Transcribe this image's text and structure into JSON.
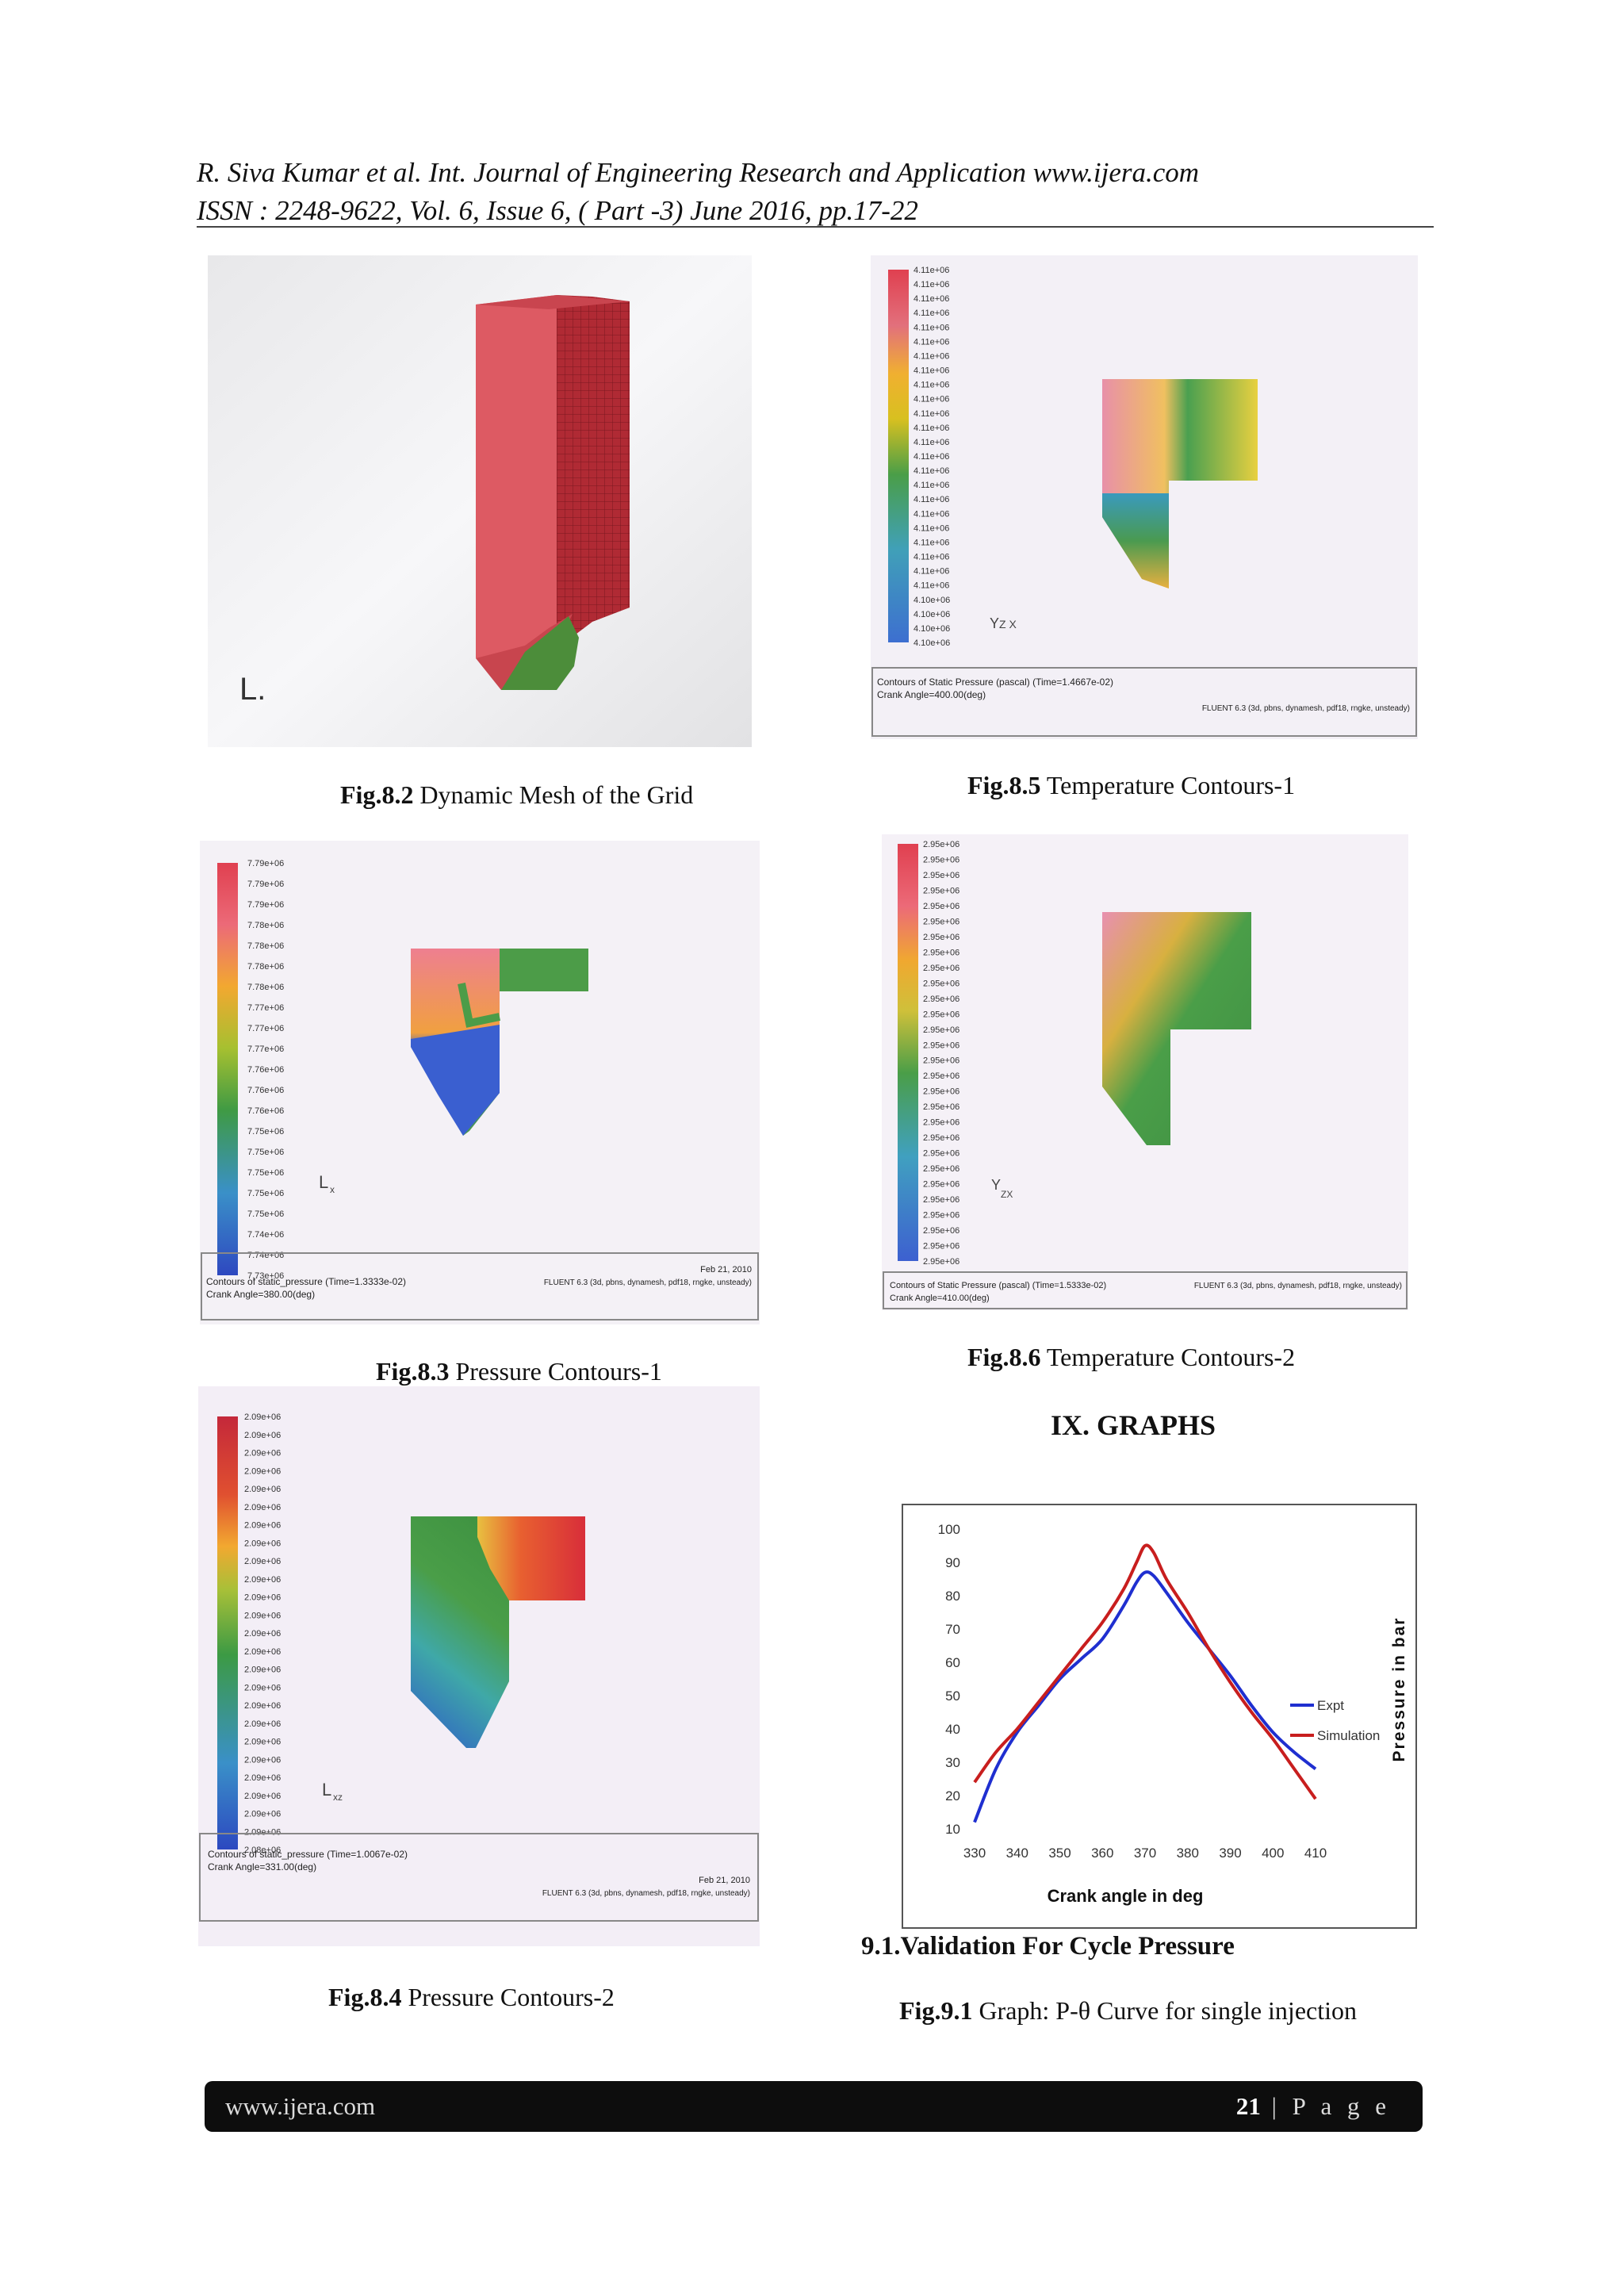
{
  "header": {
    "line1": "R. Siva Kumar et al.  Int. Journal of Engineering Research and Application www.ijera.com",
    "line2": "ISSN : 2248-9622, Vol. 6, Issue 6, ( Part -3) June 2016, pp.17-22"
  },
  "figures": {
    "fig82": {
      "num": "Fig.8.2",
      "text": " Dynamic Mesh of the Grid"
    },
    "fig85": {
      "num": "Fig.8.5",
      "text": " Temperature Contours-1"
    },
    "fig83": {
      "num": "Fig.8.3",
      "text": " Pressure Contours-1"
    },
    "fig86": {
      "num": "Fig.8.6",
      "text": " Temperature Contours-2"
    },
    "fig84": {
      "num": "Fig.8.4",
      "text": " Pressure Contours-2"
    },
    "fig91": {
      "num": "Fig.9.1",
      "text": " Graph: P-θ Curve for single injection"
    }
  },
  "contours": {
    "c83": {
      "legend": [
        "7.79e+06",
        "7.79e+06",
        "7.79e+06",
        "7.78e+06",
        "7.78e+06",
        "7.78e+06",
        "7.78e+06",
        "7.77e+06",
        "7.77e+06",
        "7.77e+06",
        "7.76e+06",
        "7.76e+06",
        "7.76e+06",
        "7.75e+06",
        "7.75e+06",
        "7.75e+06",
        "7.75e+06",
        "7.75e+06",
        "7.74e+06",
        "7.74e+06",
        "7.73e+06"
      ],
      "info_left1": "Contours of static_pressure  (Time=1.3333e-02)",
      "info_left2": "Crank Angle=380.00(deg)",
      "info_right1": "Feb 21, 2010",
      "info_right2": "FLUENT 6.3 (3d, pbns, dynamesh, pdf18, rngke, unsteady)"
    },
    "c84": {
      "legend": [
        "2.09e+06",
        "2.09e+06",
        "2.09e+06",
        "2.09e+06",
        "2.09e+06",
        "2.09e+06",
        "2.09e+06",
        "2.09e+06",
        "2.09e+06",
        "2.09e+06",
        "2.09e+06",
        "2.09e+06",
        "2.09e+06",
        "2.09e+06",
        "2.09e+06",
        "2.09e+06",
        "2.09e+06",
        "2.09e+06",
        "2.09e+06",
        "2.09e+06",
        "2.09e+06",
        "2.09e+06",
        "2.09e+06",
        "2.09e+06",
        "2.08e+06"
      ],
      "info_left1": "Contours of static_pressure  (Time=1.0067e-02)",
      "info_left2": "Crank Angle=331.00(deg)",
      "info_right1": "Feb 21, 2010",
      "info_right2": "FLUENT 6.3 (3d, pbns, dynamesh, pdf18, rngke, unsteady)"
    },
    "c85": {
      "legend": [
        "4.11e+06",
        "4.11e+06",
        "4.11e+06",
        "4.11e+06",
        "4.11e+06",
        "4.11e+06",
        "4.11e+06",
        "4.11e+06",
        "4.11e+06",
        "4.11e+06",
        "4.11e+06",
        "4.11e+06",
        "4.11e+06",
        "4.11e+06",
        "4.11e+06",
        "4.11e+06",
        "4.11e+06",
        "4.11e+06",
        "4.11e+06",
        "4.11e+06",
        "4.11e+06",
        "4.11e+06",
        "4.11e+06",
        "4.10e+06",
        "4.10e+06",
        "4.10e+06",
        "4.10e+06"
      ],
      "info_left1": "Contours of Static Pressure (pascal)  (Time=1.4667e-02)",
      "info_left2": "Crank Angle=400.00(deg)",
      "info_right2": "FLUENT 6.3 (3d, pbns, dynamesh, pdf18, rngke, unsteady)"
    },
    "c86": {
      "legend": [
        "2.95e+06",
        "2.95e+06",
        "2.95e+06",
        "2.95e+06",
        "2.95e+06",
        "2.95e+06",
        "2.95e+06",
        "2.95e+06",
        "2.95e+06",
        "2.95e+06",
        "2.95e+06",
        "2.95e+06",
        "2.95e+06",
        "2.95e+06",
        "2.95e+06",
        "2.95e+06",
        "2.95e+06",
        "2.95e+06",
        "2.95e+06",
        "2.95e+06",
        "2.95e+06",
        "2.95e+06",
        "2.95e+06",
        "2.95e+06",
        "2.95e+06",
        "2.95e+06",
        "2.95e+06",
        "2.95e+06"
      ],
      "info_left1": "Contours of Static Pressure (pascal)  (Time=1.5333e-02)",
      "info_left2": "Crank Angle=410.00(deg)",
      "info_right2": "FLUENT 6.3 (3d, pbns, dynamesh, pdf18, rngke, unsteady)"
    }
  },
  "sections": {
    "graphs": "IX.   GRAPHS",
    "validation": "9.1.Validation For Cycle Pressure"
  },
  "chart_data": {
    "type": "line",
    "xlabel": "Crank angle in deg",
    "ylabel": "Pressure in bar",
    "xlim": [
      330,
      410
    ],
    "ylim": [
      10,
      100
    ],
    "x_ticks": [
      330,
      340,
      350,
      360,
      370,
      380,
      390,
      400,
      410
    ],
    "y_ticks": [
      10,
      20,
      30,
      40,
      50,
      60,
      70,
      80,
      90,
      100
    ],
    "legend_position": "right",
    "grid": false,
    "series": [
      {
        "name": "Expt",
        "color": "#1f2fd0",
        "x": [
          330,
          335,
          340,
          345,
          350,
          355,
          360,
          365,
          368,
          370,
          372,
          375,
          380,
          385,
          390,
          395,
          400,
          405,
          410
        ],
        "y": [
          12,
          28,
          39,
          47,
          55,
          61,
          67,
          77,
          84,
          87,
          86,
          81,
          72,
          64,
          56,
          47,
          39,
          33,
          28
        ]
      },
      {
        "name": "Simulation",
        "color": "#c81e1e",
        "x": [
          330,
          335,
          340,
          345,
          350,
          355,
          360,
          365,
          368,
          370,
          372,
          375,
          380,
          385,
          390,
          395,
          400,
          405,
          410
        ],
        "y": [
          24,
          33,
          40,
          48,
          56,
          64,
          72,
          82,
          90,
          95,
          93,
          85,
          75,
          64,
          54,
          45,
          37,
          28,
          19
        ]
      }
    ]
  },
  "footer": {
    "site": "www.ijera.com",
    "page_num": "21",
    "page_label": " | P a g e"
  }
}
